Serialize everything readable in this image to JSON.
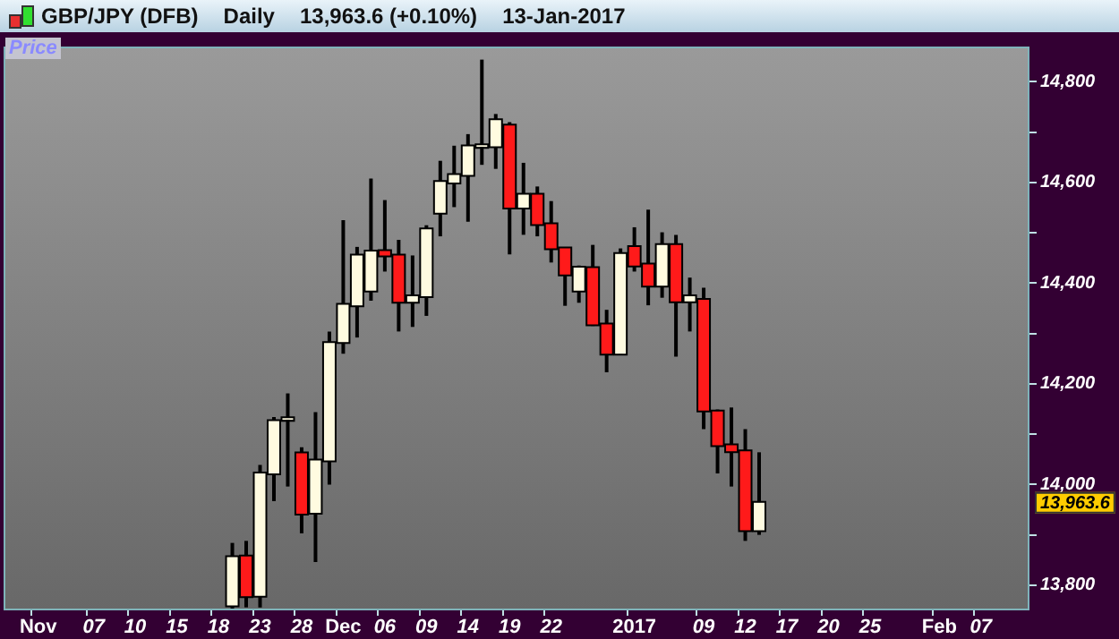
{
  "chart_data": {
    "type": "candlestick",
    "title": "GBP/JPY (DFB)",
    "ylabel": "Price",
    "annotations": [
      "Daily",
      "13,963.6 (+0.10%)",
      "13-Jan-2017",
      "13,963.6"
    ],
    "categories": [
      null,
      null,
      "Nov",
      null,
      null,
      null,
      "07",
      null,
      null,
      "10",
      null,
      null,
      "15",
      null,
      null,
      "18",
      null,
      null,
      "23",
      null,
      null,
      "28",
      null,
      null,
      "Dec",
      null,
      null,
      "06",
      null,
      null,
      "09",
      null,
      null,
      "14",
      null,
      null,
      "19",
      null,
      null,
      "22",
      null,
      null,
      null,
      null,
      null,
      "2017",
      null,
      null,
      null,
      null,
      "09",
      null,
      null,
      "12",
      null,
      null,
      "17",
      null,
      null,
      "20",
      null,
      null,
      "25",
      null,
      null,
      null,
      null,
      "Feb",
      null,
      null,
      "07",
      null,
      null,
      null
    ],
    "ohlc": [
      null,
      null,
      null,
      null,
      null,
      null,
      null,
      null,
      null,
      null,
      null,
      null,
      null,
      null,
      null,
      null,
      [
        13760,
        13884,
        13750,
        13856
      ],
      [
        13857,
        13888,
        13756,
        13778
      ],
      [
        13779,
        14039,
        13756,
        14022
      ],
      [
        14022,
        14134,
        13967,
        14126
      ],
      [
        14130,
        14181,
        13996,
        14132
      ],
      [
        14062,
        14074,
        13903,
        13942
      ],
      [
        13944,
        14144,
        13846,
        14048
      ],
      [
        14048,
        14304,
        14000,
        14281
      ],
      [
        14283,
        14525,
        14260,
        14357
      ],
      [
        14356,
        14472,
        14292,
        14455
      ],
      [
        14385,
        14608,
        14365,
        14463
      ],
      [
        14464,
        14565,
        14423,
        14455
      ],
      [
        14455,
        14486,
        14304,
        14363
      ],
      [
        14363,
        14455,
        14313,
        14374
      ],
      [
        14374,
        14515,
        14335,
        14507
      ],
      [
        14540,
        14643,
        14493,
        14601
      ],
      [
        14600,
        14673,
        14551,
        14615
      ],
      [
        14615,
        14696,
        14522,
        14672
      ],
      [
        14672,
        14844,
        14635,
        14674
      ],
      [
        14672,
        14736,
        14627,
        14724
      ],
      [
        14713,
        14720,
        14457,
        14550
      ],
      [
        14550,
        14639,
        14496,
        14576
      ],
      [
        14576,
        14592,
        14493,
        14517
      ],
      [
        14517,
        14563,
        14441,
        14469
      ],
      [
        14469,
        14471,
        14355,
        14417
      ],
      [
        14385,
        14435,
        14361,
        14431
      ],
      [
        14430,
        14476,
        14315,
        14318
      ],
      [
        14318,
        14347,
        14223,
        14260
      ],
      [
        14260,
        14469,
        14257,
        14458
      ],
      [
        14472,
        14511,
        14423,
        14435
      ],
      [
        14437,
        14546,
        14356,
        14395
      ],
      [
        14395,
        14501,
        14371,
        14476
      ],
      [
        14476,
        14496,
        14254,
        14364
      ],
      [
        14364,
        14411,
        14304,
        14374
      ],
      [
        14367,
        14391,
        14110,
        14147
      ],
      [
        14145,
        14149,
        14022,
        14078
      ],
      [
        14078,
        14153,
        13996,
        14066
      ],
      [
        14066,
        14110,
        13888,
        13909
      ],
      [
        13909,
        14064,
        13900,
        13963.6
      ],
      null,
      null,
      null,
      null,
      null,
      null,
      null,
      null,
      null,
      null,
      null,
      null,
      null,
      null,
      null,
      null,
      null,
      null,
      null
    ],
    "colors": [
      null,
      null,
      null,
      null,
      null,
      null,
      null,
      null,
      null,
      null,
      null,
      null,
      null,
      null,
      null,
      null,
      "#fffbe0",
      "#ff1a1a",
      "#fffbe0",
      "#fffbe0",
      "#fffbe0",
      "#ff1a1a",
      "#fffbe0",
      "#fffbe0",
      "#fffbe0",
      "#fffbe0",
      "#fffbe0",
      "#ff1a1a",
      "#ff1a1a",
      "#fffbe0",
      "#fffbe0",
      "#fffbe0",
      "#fffbe0",
      "#fffbe0",
      "#fffbe0",
      "#fffbe0",
      "#ff1a1a",
      "#fffbe0",
      "#ff1a1a",
      "#ff1a1a",
      "#ff1a1a",
      "#fffbe0",
      "#ff1a1a",
      "#ff1a1a",
      "#fffbe0",
      "#ff1a1a",
      "#ff1a1a",
      "#fffbe0",
      "#ff1a1a",
      "#fffbe0",
      "#ff1a1a",
      "#ff1a1a",
      "#ff1a1a",
      "#ff1a1a",
      "#fffbe0",
      null,
      null,
      null,
      null,
      null,
      null,
      null,
      null,
      null,
      null,
      null,
      null,
      null,
      null,
      null,
      null,
      null,
      null,
      null
    ],
    "ylim": [
      13750,
      14870
    ],
    "yticks": [
      {
        "value": 13800,
        "label": "13,800"
      },
      {
        "value": 13900,
        "label": null
      },
      {
        "value": 14000,
        "label": "14,000"
      },
      {
        "value": 14100,
        "label": null
      },
      {
        "value": 14200,
        "label": "14,200"
      },
      {
        "value": 14300,
        "label": null
      },
      {
        "value": 14400,
        "label": "14,400"
      },
      {
        "value": 14500,
        "label": null
      },
      {
        "value": 14600,
        "label": "14,600"
      },
      {
        "value": 14700,
        "label": null
      },
      {
        "value": 14800,
        "label": "14,800"
      }
    ]
  }
}
